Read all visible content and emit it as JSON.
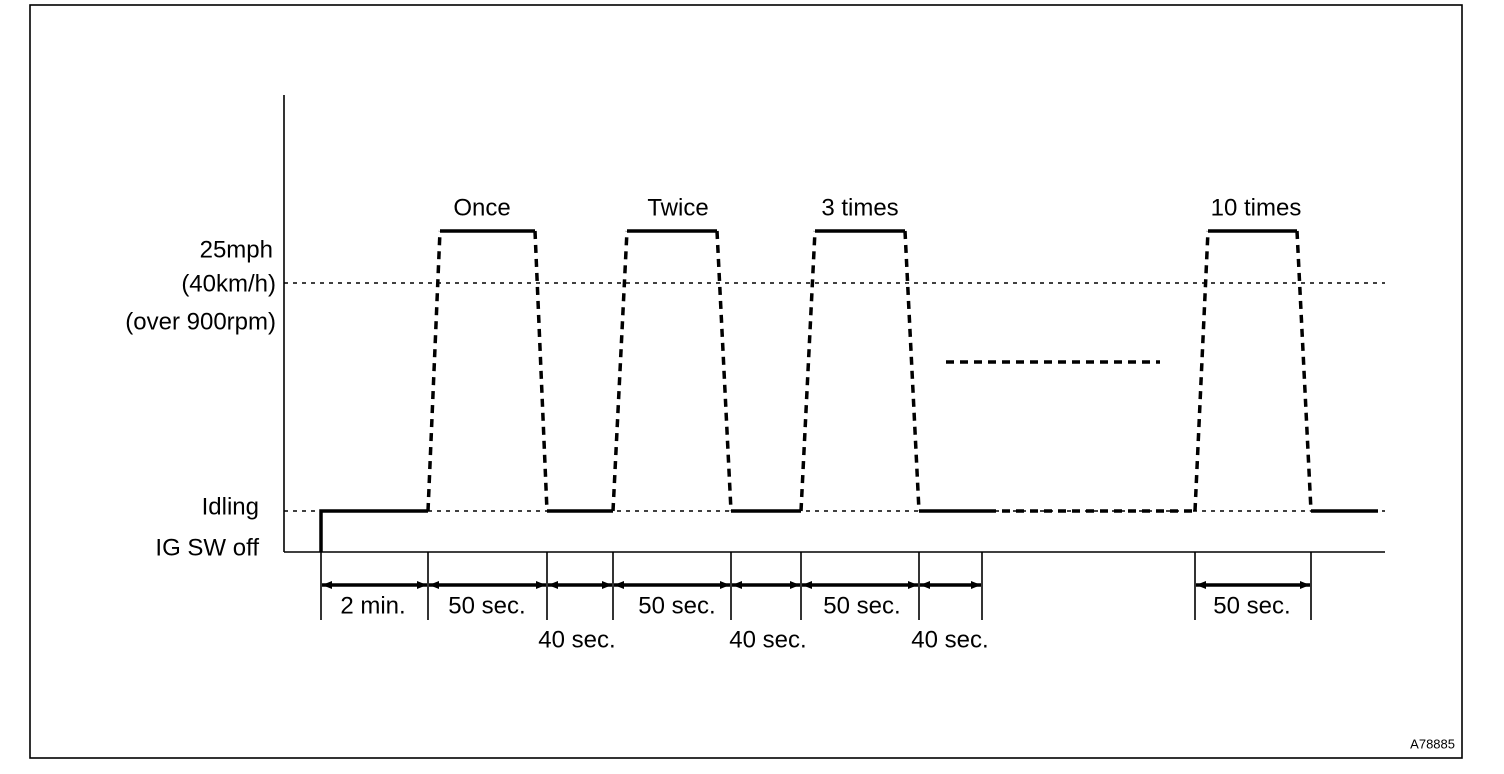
{
  "axis_labels": {
    "speed": [
      "25mph",
      "(40km/h)",
      "(over 900rpm)"
    ],
    "idling": "Idling",
    "ig_sw_off": "IG SW off"
  },
  "cycles": [
    {
      "label": "Once"
    },
    {
      "label": "Twice"
    },
    {
      "label": "3 times"
    },
    {
      "label": "10 times"
    }
  ],
  "durations": [
    {
      "label": "2 min."
    },
    {
      "label": "50 sec."
    },
    {
      "label": "40 sec."
    },
    {
      "label": "50 sec."
    },
    {
      "label": "40 sec."
    },
    {
      "label": "50 sec."
    },
    {
      "label": "40 sec."
    },
    {
      "label": "50 sec."
    }
  ],
  "figure_id": "A78885"
}
